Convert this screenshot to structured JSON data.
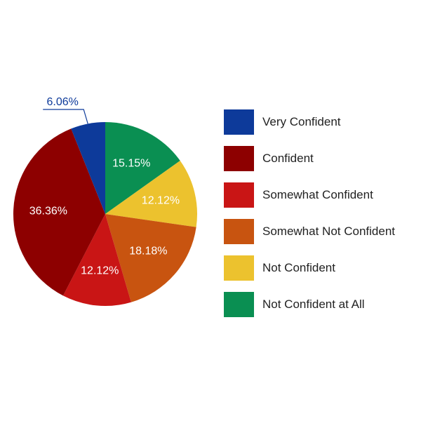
{
  "chart_data": {
    "type": "pie",
    "title": "",
    "start_angle_deg": -90,
    "direction": "clockwise",
    "slices": [
      {
        "label": "Not Confident at All",
        "value": 15.15,
        "display": "15.15%",
        "color": "#0a8f52"
      },
      {
        "label": "Not Confident",
        "value": 12.12,
        "display": "12.12%",
        "color": "#ecc22e"
      },
      {
        "label": "Somewhat Not Confident",
        "value": 18.18,
        "display": "18.18%",
        "color": "#c85410"
      },
      {
        "label": "Somewhat Confident",
        "value": 12.12,
        "display": "12.12%",
        "color": "#c91515"
      },
      {
        "label": "Confident",
        "value": 36.36,
        "display": "36.36%",
        "color": "#8d0000"
      },
      {
        "label": "Very Confident",
        "value": 6.06,
        "display": "6.06%",
        "color": "#0d3a9a"
      }
    ],
    "legend": {
      "placement": "right",
      "items": [
        {
          "label": "Very Confident",
          "color": "#0d3a9a"
        },
        {
          "label": "Confident",
          "color": "#8d0000"
        },
        {
          "label": "Somewhat Confident",
          "color": "#c91515"
        },
        {
          "label": "Somewhat Not Confident",
          "color": "#c85410"
        },
        {
          "label": "Not Confident",
          "color": "#ecc22e"
        },
        {
          "label": "Not Confident at All",
          "color": "#0a8f52"
        }
      ]
    }
  }
}
